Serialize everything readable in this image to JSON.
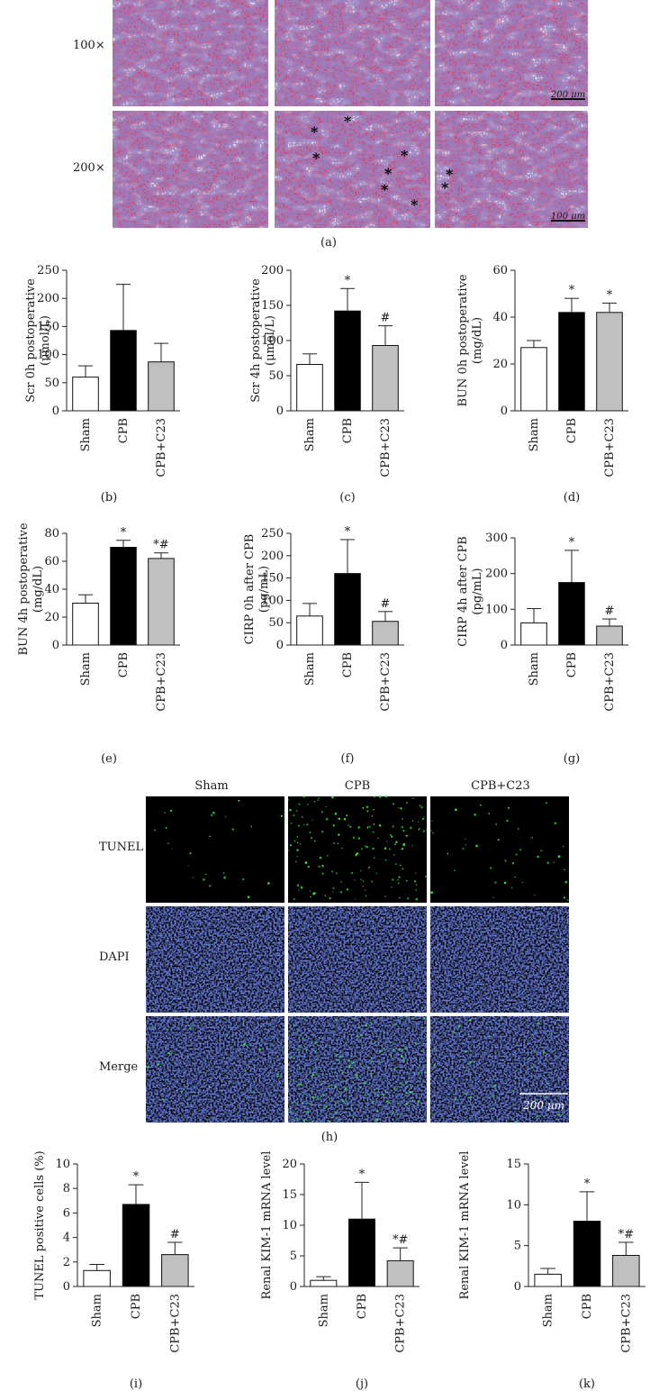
{
  "he_panel": {
    "row_labels": [
      "100×",
      "200×"
    ],
    "scale_bars": [
      "200 μm",
      "100 μm"
    ],
    "caption": "(a)",
    "colors": {
      "tissue": "#d7456e",
      "nuclei": "#4a3c8c",
      "lumen": "#f3dde5"
    }
  },
  "tunel_panel": {
    "col_labels": [
      "Sham",
      "CPB",
      "CPB+C23"
    ],
    "row_labels": [
      "TUNEL",
      "DAPI",
      "Merge"
    ],
    "scale_bar": "200 μm",
    "caption": "(h)",
    "colors": {
      "tunel": "#3be04a",
      "dapi": "#2233aa",
      "background": "#000000"
    }
  },
  "chart_data": [
    {
      "id": "b",
      "type": "bar",
      "caption": "(b)",
      "categories": [
        "Sham",
        "CPB",
        "CPB+C23"
      ],
      "values": [
        60,
        143,
        87
      ],
      "errors": [
        20,
        82,
        33
      ],
      "ylabel": [
        "Scr 0h postoperative",
        "(μmol/L)"
      ],
      "ylim": [
        0,
        250
      ],
      "yticks": [
        0,
        50,
        100,
        150,
        200,
        250
      ],
      "annotations": [
        "",
        "",
        ""
      ]
    },
    {
      "id": "c",
      "type": "bar",
      "caption": "(c)",
      "categories": [
        "Sham",
        "CPB",
        "CPB+C23"
      ],
      "values": [
        66,
        142,
        93
      ],
      "errors": [
        15,
        32,
        28
      ],
      "ylabel": [
        "Scr 4h postoperative",
        "(μmol/L)"
      ],
      "ylim": [
        0,
        200
      ],
      "yticks": [
        0,
        50,
        100,
        150,
        200
      ],
      "annotations": [
        "",
        "*",
        "#"
      ]
    },
    {
      "id": "d",
      "type": "bar",
      "caption": "(d)",
      "categories": [
        "Sham",
        "CPB",
        "CPB+C23"
      ],
      "values": [
        27,
        42,
        42
      ],
      "errors": [
        3,
        6,
        4
      ],
      "ylabel": [
        "BUN 0h postoperative",
        "(mg/dL)"
      ],
      "ylim": [
        0,
        60
      ],
      "yticks": [
        0,
        20,
        40,
        60
      ],
      "annotations": [
        "",
        "*",
        "*"
      ]
    },
    {
      "id": "e",
      "type": "bar",
      "caption": "(e)",
      "categories": [
        "Sham",
        "CPB",
        "CPB+C23"
      ],
      "values": [
        30,
        70,
        62
      ],
      "errors": [
        6,
        5,
        4
      ],
      "ylabel": [
        "BUN 4h postoperative",
        "(mg/dL)"
      ],
      "ylim": [
        0,
        80
      ],
      "yticks": [
        0,
        20,
        40,
        60,
        80
      ],
      "annotations": [
        "",
        "*",
        "*#"
      ]
    },
    {
      "id": "f",
      "type": "bar",
      "caption": "(f)",
      "categories": [
        "Sham",
        "CPB",
        "CPB+C23"
      ],
      "values": [
        65,
        160,
        53
      ],
      "errors": [
        28,
        76,
        22
      ],
      "ylabel": [
        "CIRP 0h after CPB",
        "(pg/mL)"
      ],
      "ylim": [
        0,
        250
      ],
      "yticks": [
        0,
        50,
        100,
        150,
        200,
        250
      ],
      "annotations": [
        "",
        "*",
        "#"
      ]
    },
    {
      "id": "g",
      "type": "bar",
      "caption": "(g)",
      "categories": [
        "Sham",
        "CPB",
        "CPB+C23"
      ],
      "values": [
        62,
        175,
        53
      ],
      "errors": [
        40,
        90,
        20
      ],
      "ylabel": [
        "CIRP 4h after CPB",
        "(pg/mL)"
      ],
      "ylim": [
        0,
        300
      ],
      "yticks": [
        0,
        100,
        200,
        300
      ],
      "annotations": [
        "",
        "*",
        "#"
      ]
    },
    {
      "id": "i",
      "type": "bar",
      "caption": "(i)",
      "categories": [
        "Sham",
        "CPB",
        "CPB+C23"
      ],
      "values": [
        1.3,
        6.7,
        2.6
      ],
      "errors": [
        0.5,
        1.6,
        1.0
      ],
      "ylabel": [
        "TUNEL positive cells (%)"
      ],
      "ylim": [
        0,
        10
      ],
      "yticks": [
        0,
        2,
        4,
        6,
        8,
        10
      ],
      "annotations": [
        "",
        "*",
        "#"
      ]
    },
    {
      "id": "j",
      "type": "bar",
      "caption": "(j)",
      "categories": [
        "Sham",
        "CPB",
        "CPB+C23"
      ],
      "values": [
        1.0,
        11.0,
        4.2
      ],
      "errors": [
        0.6,
        6.0,
        2.1
      ],
      "ylabel": [
        "Renal KIM-1 mRNA level"
      ],
      "ylim": [
        0,
        20
      ],
      "yticks": [
        0,
        5,
        10,
        15,
        20
      ],
      "annotations": [
        "",
        "*",
        "*#"
      ]
    },
    {
      "id": "k",
      "type": "bar",
      "caption": "(k)",
      "categories": [
        "Sham",
        "CPB",
        "CPB+C23"
      ],
      "values": [
        1.5,
        8.0,
        3.8
      ],
      "errors": [
        0.7,
        3.6,
        1.6
      ],
      "ylabel": [
        "Renal KIM-1 mRNA level"
      ],
      "ylim": [
        0,
        15
      ],
      "yticks": [
        0,
        5,
        10,
        15
      ],
      "annotations": [
        "",
        "*",
        "*#"
      ]
    }
  ]
}
